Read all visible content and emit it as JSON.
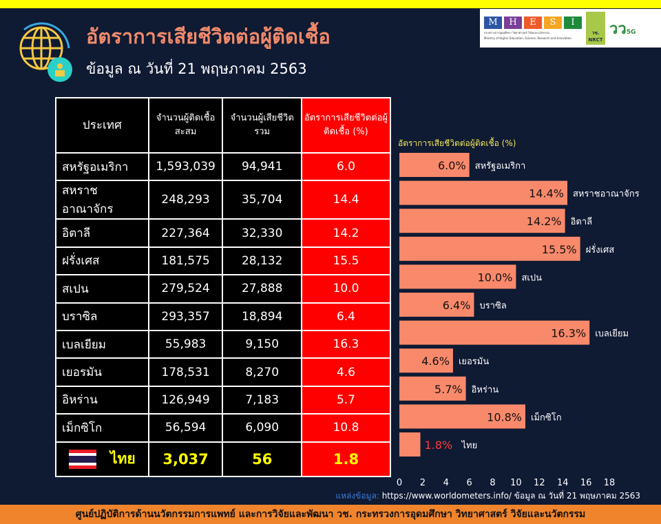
{
  "header": {
    "title": "อัตราการเสียชีวิตต่อผู้ติดเชื้อ",
    "subtitle": "ข้อมูล ณ วันที่ 21 พฤษภาคม 2563"
  },
  "logos": {
    "mhesi_letters": [
      "M",
      "H",
      "E",
      "S",
      "I"
    ],
    "mhesi_colors": [
      "#2d55a5",
      "#7b3f98",
      "#ef5a2a",
      "#f5a623",
      "#1e8a3c"
    ],
    "mhesi_th": "กระทรวงการอุดมศึกษา วิทยาศาสตร์ วิจัยและนวัตกรรม",
    "mhesi_en": "Ministry of Higher Education, Science, Research and Innovation",
    "nrct": "วช. NRCT",
    "fiveg": "5G"
  },
  "table": {
    "headers": [
      "ประเทศ",
      "จำนวนผู้ติดเชื้อสะสม",
      "จำนวนผู้เสียชีวิตรวม",
      "อัตราการเสียชีวิตต่อผู้ติดเชื้อ (%)"
    ],
    "rows": [
      [
        "สหรัฐอเมริกา",
        "1,593,039",
        "94,941",
        "6.0"
      ],
      [
        "สหราชอาณาจักร",
        "248,293",
        "35,704",
        "14.4"
      ],
      [
        "อิตาลี",
        "227,364",
        "32,330",
        "14.2"
      ],
      [
        "ฝรั่งเศส",
        "181,575",
        "28,132",
        "15.5"
      ],
      [
        "สเปน",
        "279,524",
        "27,888",
        "10.0"
      ],
      [
        "บราซิล",
        "293,357",
        "18,894",
        "6.4"
      ],
      [
        "เบลเยียม",
        "55,983",
        "9,150",
        "16.3"
      ],
      [
        "เยอรมัน",
        "178,531",
        "8,270",
        "4.6"
      ],
      [
        "อิหร่าน",
        "126,949",
        "7,183",
        "5.7"
      ],
      [
        "เม็กซิโก",
        "56,594",
        "6,090",
        "10.8"
      ]
    ],
    "thai": [
      "ไทย",
      "3,037",
      "56",
      "1.8"
    ]
  },
  "chart_data": {
    "type": "bar",
    "orientation": "horizontal",
    "title": "อัตราการเสียชีวิตต่อผู้ติดเชื้อ (%)",
    "categories": [
      "สหรัฐอเมริกา",
      "สหราชอาณาจักร",
      "อิตาลี",
      "ฝรั่งเศส",
      "สเปน",
      "บราซิล",
      "เบลเยียม",
      "เยอรมัน",
      "อิหร่าน",
      "เม็กซิโก",
      "ไทย"
    ],
    "values": [
      6.0,
      14.4,
      14.2,
      15.5,
      10.0,
      6.4,
      16.3,
      4.6,
      5.7,
      10.8,
      1.8
    ],
    "labels": [
      "6.0%",
      "14.4%",
      "14.2%",
      "15.5%",
      "10.0%",
      "6.4%",
      "16.3%",
      "4.6%",
      "5.7%",
      "10.8%",
      "1.8%"
    ],
    "xlim": [
      0,
      18
    ],
    "xticks": [
      "0",
      "2",
      "4",
      "6",
      "8",
      "10",
      "12",
      "14",
      "16",
      "18"
    ],
    "bar_color": "#f9896b",
    "highlight_label_color": "#ff3a3a"
  },
  "source": {
    "label": "แหล่งข้อมูล:",
    "text": " https://www.worldometers.info/ ข้อมูล ณ วันที่ 21 พฤษภาคม 2563"
  },
  "footer": "ศูนย์ปฏิบัติการด้านนวัตกรรมการแพทย์ และการวิจัยและพัฒนา วช.   กระทรวงการอุดมศึกษา วิทยาศาสตร์ วิจัยและนวัตกรรม"
}
